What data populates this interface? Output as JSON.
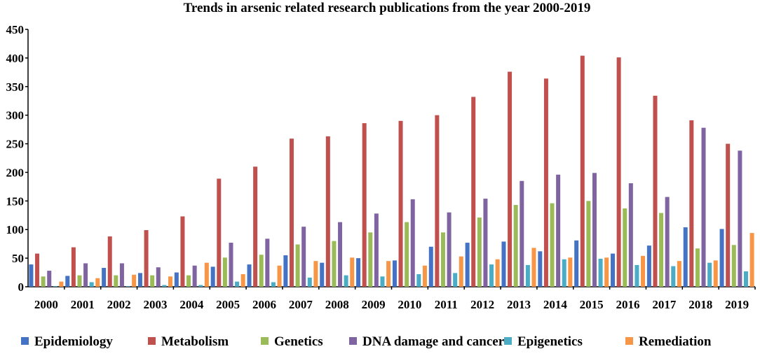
{
  "chart_data": {
    "type": "bar",
    "title": "Trends in arsenic related research publications from the year 2000-2019",
    "xlabel": "",
    "ylabel": "",
    "ylim": [
      0,
      450
    ],
    "yticks": [
      0,
      50,
      100,
      150,
      200,
      250,
      300,
      350,
      400,
      450
    ],
    "grid": false,
    "legend_position": "bottom",
    "categories": [
      "2000",
      "2001",
      "2002",
      "2003",
      "2004",
      "2005",
      "2006",
      "2007",
      "2008",
      "2009",
      "2010",
      "2011",
      "2012",
      "2013",
      "2014",
      "2015",
      "2016",
      "2017",
      "2018",
      "2019"
    ],
    "series": [
      {
        "name": "Epidemiology",
        "color": "#4472C4",
        "values": [
          39,
          19,
          33,
          24,
          25,
          35,
          39,
          55,
          42,
          50,
          46,
          70,
          77,
          79,
          62,
          81,
          58,
          72,
          104,
          101
        ]
      },
      {
        "name": "Metabolism",
        "color": "#C0504D",
        "values": [
          58,
          69,
          88,
          99,
          123,
          189,
          210,
          259,
          263,
          286,
          290,
          300,
          332,
          376,
          364,
          404,
          401,
          334,
          291,
          250
        ]
      },
      {
        "name": "Genetics",
        "color": "#9BBB59",
        "values": [
          18,
          20,
          20,
          20,
          20,
          51,
          56,
          74,
          80,
          95,
          113,
          95,
          121,
          143,
          146,
          150,
          137,
          129,
          67,
          73
        ]
      },
      {
        "name": "DNA damage and cancer",
        "color": "#8064A2",
        "values": [
          28,
          41,
          41,
          34,
          37,
          77,
          84,
          105,
          113,
          128,
          153,
          130,
          154,
          185,
          196,
          199,
          181,
          157,
          278,
          238
        ]
      },
      {
        "name": "Epigenetics",
        "color": "#4BACC6",
        "values": [
          1,
          8,
          1,
          3,
          3,
          9,
          8,
          16,
          20,
          18,
          22,
          24,
          39,
          38,
          48,
          49,
          38,
          36,
          42,
          27
        ]
      },
      {
        "name": "Remediation",
        "color": "#F79646",
        "values": [
          9,
          15,
          21,
          18,
          42,
          22,
          37,
          45,
          51,
          45,
          37,
          53,
          48,
          68,
          51,
          51,
          54,
          45,
          46,
          94
        ]
      }
    ]
  }
}
